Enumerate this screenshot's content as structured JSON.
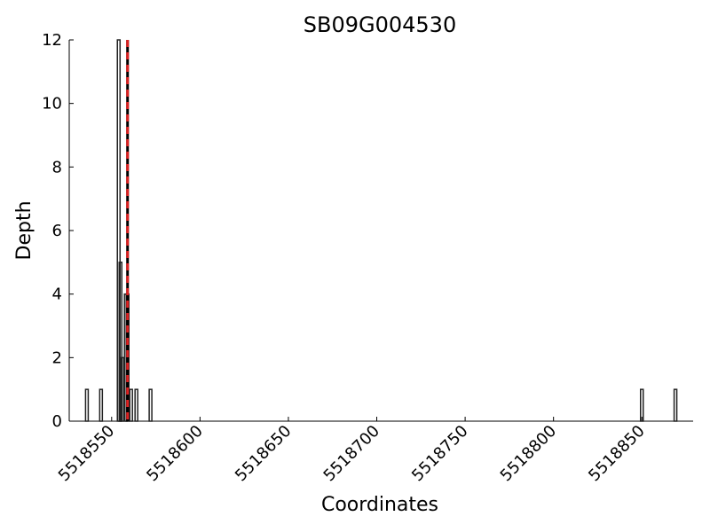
{
  "chart_data": {
    "type": "bar",
    "title": "SB09G004530",
    "x_label": "Coordinates",
    "y_label": "Depth",
    "x": [
      5518536,
      5518544,
      5518554,
      5518555,
      5518556,
      5518558,
      5518559,
      5518561,
      5518564,
      5518572,
      5518850,
      5518869
    ],
    "values": [
      1,
      1,
      12,
      5,
      2,
      4,
      4,
      1,
      1,
      1,
      1,
      1
    ],
    "color": "#222222",
    "vline": 5518559,
    "vline_color": "#dd2222",
    "xlim": [
      5518526,
      5518879
    ],
    "xticks": [
      5518550,
      5518600,
      5518650,
      5518700,
      5518750,
      5518800,
      5518850
    ],
    "ylim": [
      0,
      12
    ],
    "yticks": [
      0,
      2,
      4,
      6,
      8,
      10,
      12
    ]
  }
}
